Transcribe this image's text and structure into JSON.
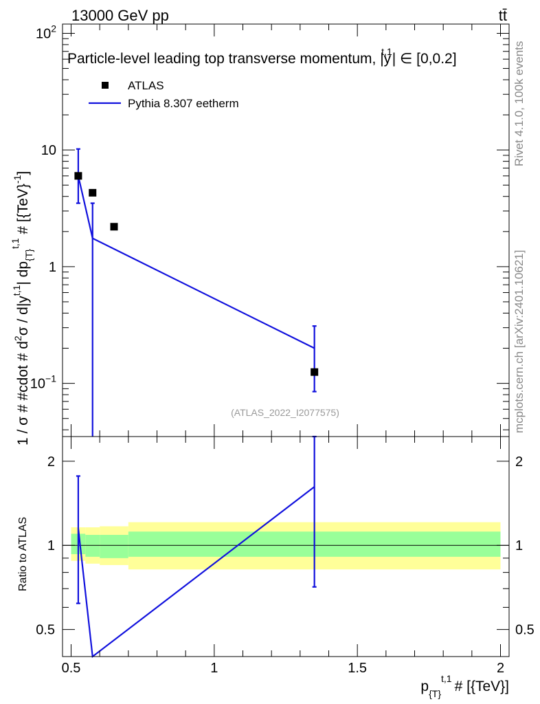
{
  "header": {
    "left_label": "13000 GeV pp",
    "right_label": "tt̄"
  },
  "side_labels": {
    "rivet": "Rivet 4.1.0,  100k events",
    "source": "mcplots.cern.ch [arXiv:2401.10621]"
  },
  "colors": {
    "mc": "#1010dd",
    "data": "#000000",
    "band_inner": "#99ff99",
    "band_outer": "#ffff99",
    "watermark": "#999999"
  },
  "chart_data": [
    {
      "type": "scatter",
      "panel": "main",
      "title": "Particle-level leading top transverse momentum, |y^{t,1}| ∈ [0,0.2]",
      "title_main": "Particle-level leading top transverse momentum, ",
      "title_y": "y",
      "title_sup": "t,1",
      "title_range": "∈ [0,0.2]",
      "ylabel": "1 / σ # #cdot # d²σ / d|y^{t,1}| dp_{T}^{t,1} # [{TeV}^{-1}]",
      "ylabel_a": "1 / σ # #cdot # d",
      "ylabel_b": "σ / d|y",
      "ylabel_c": "| dp",
      "ylabel_d": " # [{TeV}",
      "ylabel_e": "]",
      "ylabel_sup2": "2",
      "ylabel_supt1": "t,1",
      "ylabel_subT": "{T}",
      "ylabel_supm1": "-1",
      "yscale": "log",
      "ylim": [
        0.035,
        120
      ],
      "xlim": [
        0.47,
        2.03
      ],
      "yticks": [
        {
          "v": 0.1,
          "label": "10",
          "exp": "−1"
        },
        {
          "v": 1,
          "label": "1",
          "exp": ""
        },
        {
          "v": 10,
          "label": "10",
          "exp": ""
        },
        {
          "v": 100,
          "label": "10",
          "exp": "2"
        }
      ],
      "watermark": "(ATLAS_2022_I2077575)",
      "legend": [
        {
          "label": "ATLAS",
          "marker": "square"
        },
        {
          "label": "Pythia 8.307 eetherm",
          "marker": "line"
        }
      ],
      "series": [
        {
          "name": "ATLAS",
          "x": [
            0.525,
            0.575,
            0.65,
            1.35
          ],
          "y": [
            6.0,
            4.3,
            2.2,
            0.125
          ]
        },
        {
          "name": "Pythia 8.307 eetherm",
          "x": [
            0.525,
            0.575,
            1.35
          ],
          "y": [
            6.0,
            1.75,
            0.2
          ],
          "err_lo": [
            3.5,
            0.0,
            0.085
          ],
          "err_hi": [
            10.2,
            3.5,
            0.31
          ]
        }
      ]
    },
    {
      "type": "line",
      "panel": "ratio",
      "ylabel": "Ratio to ATLAS",
      "xlabel": "p_{T}^{t,1} # [{TeV}]",
      "xlabel_a": "p",
      "xlabel_sub": "{T}",
      "xlabel_sup": "t,1",
      "xlabel_b": "# [{TeV}]",
      "yscale": "log",
      "ylim": [
        0.4,
        2.45
      ],
      "xlim": [
        0.47,
        2.03
      ],
      "yticks": [
        {
          "v": 0.5,
          "label": "0.5"
        },
        {
          "v": 1,
          "label": "1"
        },
        {
          "v": 2,
          "label": "2"
        }
      ],
      "xticks": [
        {
          "v": 0.5,
          "label": "0.5"
        },
        {
          "v": 1,
          "label": "1"
        },
        {
          "v": 1.5,
          "label": "1.5"
        },
        {
          "v": 2,
          "label": "2"
        }
      ],
      "bands": [
        {
          "x0": 0.5,
          "x1": 0.55,
          "inner": [
            0.93,
            1.1
          ],
          "outer": [
            0.88,
            1.16
          ]
        },
        {
          "x0": 0.55,
          "x1": 0.6,
          "inner": [
            0.91,
            1.09
          ],
          "outer": [
            0.86,
            1.16
          ]
        },
        {
          "x0": 0.6,
          "x1": 0.7,
          "inner": [
            0.9,
            1.09
          ],
          "outer": [
            0.85,
            1.17
          ]
        },
        {
          "x0": 0.7,
          "x1": 2.0,
          "inner": [
            0.91,
            1.12
          ],
          "outer": [
            0.82,
            1.21
          ]
        }
      ],
      "series": [
        {
          "name": "Pythia 8.307 eetherm",
          "x": [
            0.525,
            0.575,
            1.35
          ],
          "y": [
            1.15,
            0.4,
            1.62
          ],
          "err_lo": [
            0.62,
            0.4,
            0.71
          ],
          "err_hi": [
            1.77,
            0.4,
            2.45
          ]
        }
      ]
    }
  ]
}
